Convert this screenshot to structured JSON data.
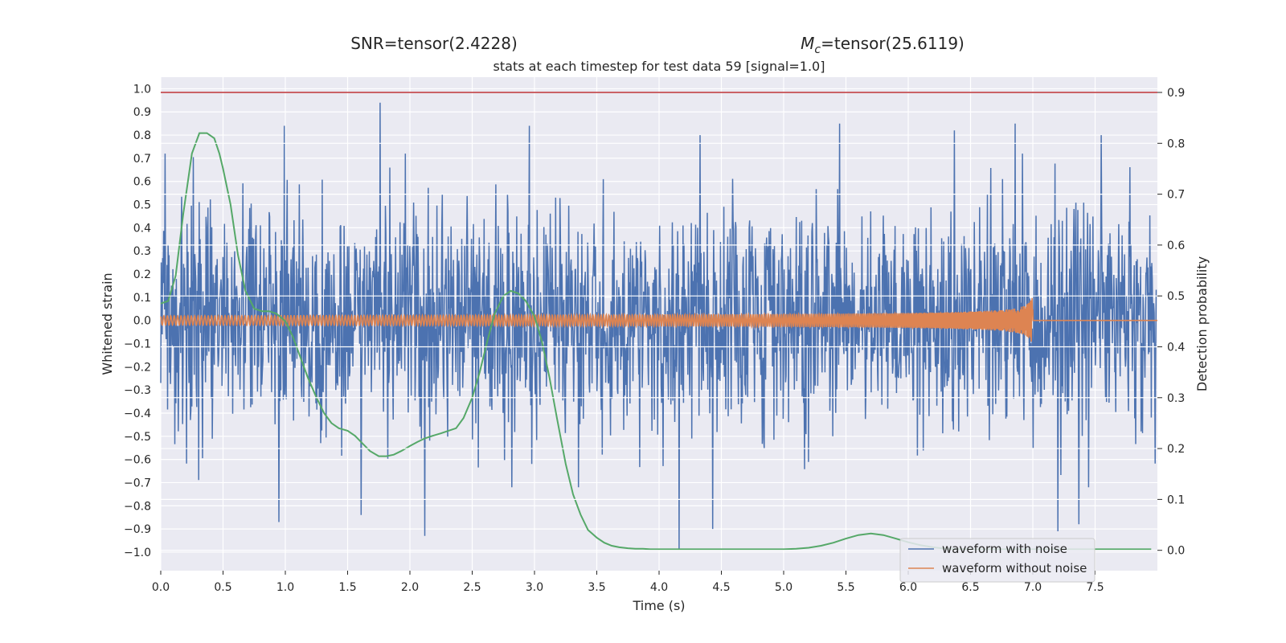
{
  "chart_data": {
    "type": "line",
    "header": {
      "snr_text": "SNR=tensor(2.4228)",
      "mc_symbol": "M",
      "mc_subscript": "c",
      "mc_value": "=tensor(25.6119)"
    },
    "title": "stats at each timestep for test data 59 [signal=1.0]",
    "xlabel": "Time (s)",
    "ylabel_left": "Whitened strain",
    "ylabel_right": "Detection probability",
    "xlim": [
      0.0,
      8.0
    ],
    "ylim_left": [
      -1.08,
      1.05
    ],
    "ylim_right": [
      -0.04,
      0.93
    ],
    "x_ticks": [
      0.0,
      0.5,
      1.0,
      1.5,
      2.0,
      2.5,
      3.0,
      3.5,
      4.0,
      4.5,
      5.0,
      5.5,
      6.0,
      6.5,
      7.0,
      7.5
    ],
    "x_tick_labels": [
      "0.0",
      "0.5",
      "1.0",
      "1.5",
      "2.0",
      "2.5",
      "3.0",
      "3.5",
      "4.0",
      "4.5",
      "5.0",
      "5.5",
      "6.0",
      "6.5",
      "7.0",
      "7.5"
    ],
    "y_left_ticks": [
      1.0,
      0.9,
      0.8,
      0.7,
      0.6,
      0.5,
      0.4,
      0.3,
      0.2,
      0.1,
      0.0,
      -0.1,
      -0.2,
      -0.3,
      -0.4,
      -0.5,
      -0.6,
      -0.7,
      -0.8,
      -0.9,
      -1.0
    ],
    "y_left_tick_labels": [
      "1.0",
      "0.9",
      "0.8",
      "0.7",
      "0.6",
      "0.5",
      "0.4",
      "0.3",
      "0.2",
      "0.1",
      "0.0",
      "−0.1",
      "−0.2",
      "−0.3",
      "−0.4",
      "−0.5",
      "−0.6",
      "−0.7",
      "−0.8",
      "−0.9",
      "−1.0"
    ],
    "y_right_ticks": [
      0.9,
      0.8,
      0.7,
      0.6,
      0.5,
      0.4,
      0.3,
      0.2,
      0.1,
      0.0
    ],
    "y_right_tick_labels": [
      "0.9",
      "0.8",
      "0.7",
      "0.6",
      "0.5",
      "0.4",
      "0.3",
      "0.2",
      "0.1",
      "0.0"
    ],
    "threshold": {
      "value": 0.9,
      "axis": "right",
      "color": "#c44e52"
    },
    "legend": {
      "placement": "lower-right",
      "entries": [
        {
          "label": "waveform with noise",
          "color": "#4c72b0"
        },
        {
          "label": "waveform without noise",
          "color": "#dd8452"
        }
      ]
    },
    "noise_waveform": {
      "name": "waveform with noise",
      "color": "#4c72b0",
      "sample_count": 2048,
      "x_range": [
        0.0,
        7.99
      ],
      "approx_envelope": [
        -0.6,
        0.6
      ],
      "peaks": [
        {
          "x": 1.76,
          "y": 0.94
        },
        {
          "x": 0.99,
          "y": 0.84
        },
        {
          "x": 2.96,
          "y": 0.84
        },
        {
          "x": 5.45,
          "y": 0.85
        },
        {
          "x": 6.86,
          "y": 0.85
        },
        {
          "x": 6.37,
          "y": 0.82
        },
        {
          "x": 4.33,
          "y": 0.8
        },
        {
          "x": 7.55,
          "y": 0.8
        },
        {
          "x": 0.95,
          "y": -0.87
        },
        {
          "x": 1.61,
          "y": -0.84
        },
        {
          "x": 2.12,
          "y": -0.93
        },
        {
          "x": 4.16,
          "y": -0.99
        },
        {
          "x": 4.43,
          "y": -0.9
        },
        {
          "x": 7.2,
          "y": -0.91
        },
        {
          "x": 7.37,
          "y": -0.88
        }
      ]
    },
    "clean_waveform": {
      "name": "waveform without noise",
      "color": "#dd8452",
      "type": "chirp",
      "merger_time": 7.0,
      "peak_amplitude": 0.13,
      "end_time": 8.0
    },
    "detection_probability": {
      "color": "#55a868",
      "axis": "right",
      "x": [
        0.0,
        0.06,
        0.12,
        0.18,
        0.25,
        0.31,
        0.37,
        0.43,
        0.47,
        0.5,
        0.56,
        0.62,
        0.68,
        0.75,
        0.81,
        0.87,
        0.93,
        1.0,
        1.06,
        1.12,
        1.18,
        1.25,
        1.31,
        1.37,
        1.43,
        1.5,
        1.56,
        1.62,
        1.68,
        1.75,
        1.81,
        1.87,
        1.93,
        2.0,
        2.06,
        2.12,
        2.18,
        2.25,
        2.31,
        2.37,
        2.43,
        2.5,
        2.56,
        2.62,
        2.68,
        2.75,
        2.81,
        2.87,
        2.93,
        3.0,
        3.06,
        3.12,
        3.18,
        3.25,
        3.31,
        3.37,
        3.43,
        3.5,
        3.56,
        3.62,
        3.68,
        3.75,
        3.81,
        3.87,
        3.93,
        4.0,
        4.5,
        5.0,
        5.1,
        5.2,
        5.3,
        5.4,
        5.5,
        5.6,
        5.7,
        5.8,
        5.9,
        6.0,
        6.1,
        6.2,
        6.3,
        6.5,
        7.0,
        7.5,
        7.95
      ],
      "y": [
        0.485,
        0.49,
        0.54,
        0.66,
        0.78,
        0.82,
        0.82,
        0.81,
        0.78,
        0.75,
        0.68,
        0.58,
        0.51,
        0.475,
        0.47,
        0.47,
        0.465,
        0.45,
        0.42,
        0.38,
        0.34,
        0.3,
        0.27,
        0.25,
        0.24,
        0.235,
        0.225,
        0.21,
        0.195,
        0.185,
        0.185,
        0.188,
        0.195,
        0.205,
        0.213,
        0.22,
        0.225,
        0.23,
        0.235,
        0.24,
        0.26,
        0.3,
        0.35,
        0.41,
        0.465,
        0.5,
        0.51,
        0.505,
        0.49,
        0.46,
        0.41,
        0.34,
        0.26,
        0.17,
        0.11,
        0.07,
        0.04,
        0.025,
        0.015,
        0.009,
        0.006,
        0.004,
        0.003,
        0.003,
        0.002,
        0.002,
        0.002,
        0.002,
        0.003,
        0.005,
        0.009,
        0.015,
        0.023,
        0.03,
        0.033,
        0.03,
        0.023,
        0.016,
        0.01,
        0.006,
        0.003,
        0.002,
        0.002,
        0.002,
        0.002
      ]
    }
  }
}
